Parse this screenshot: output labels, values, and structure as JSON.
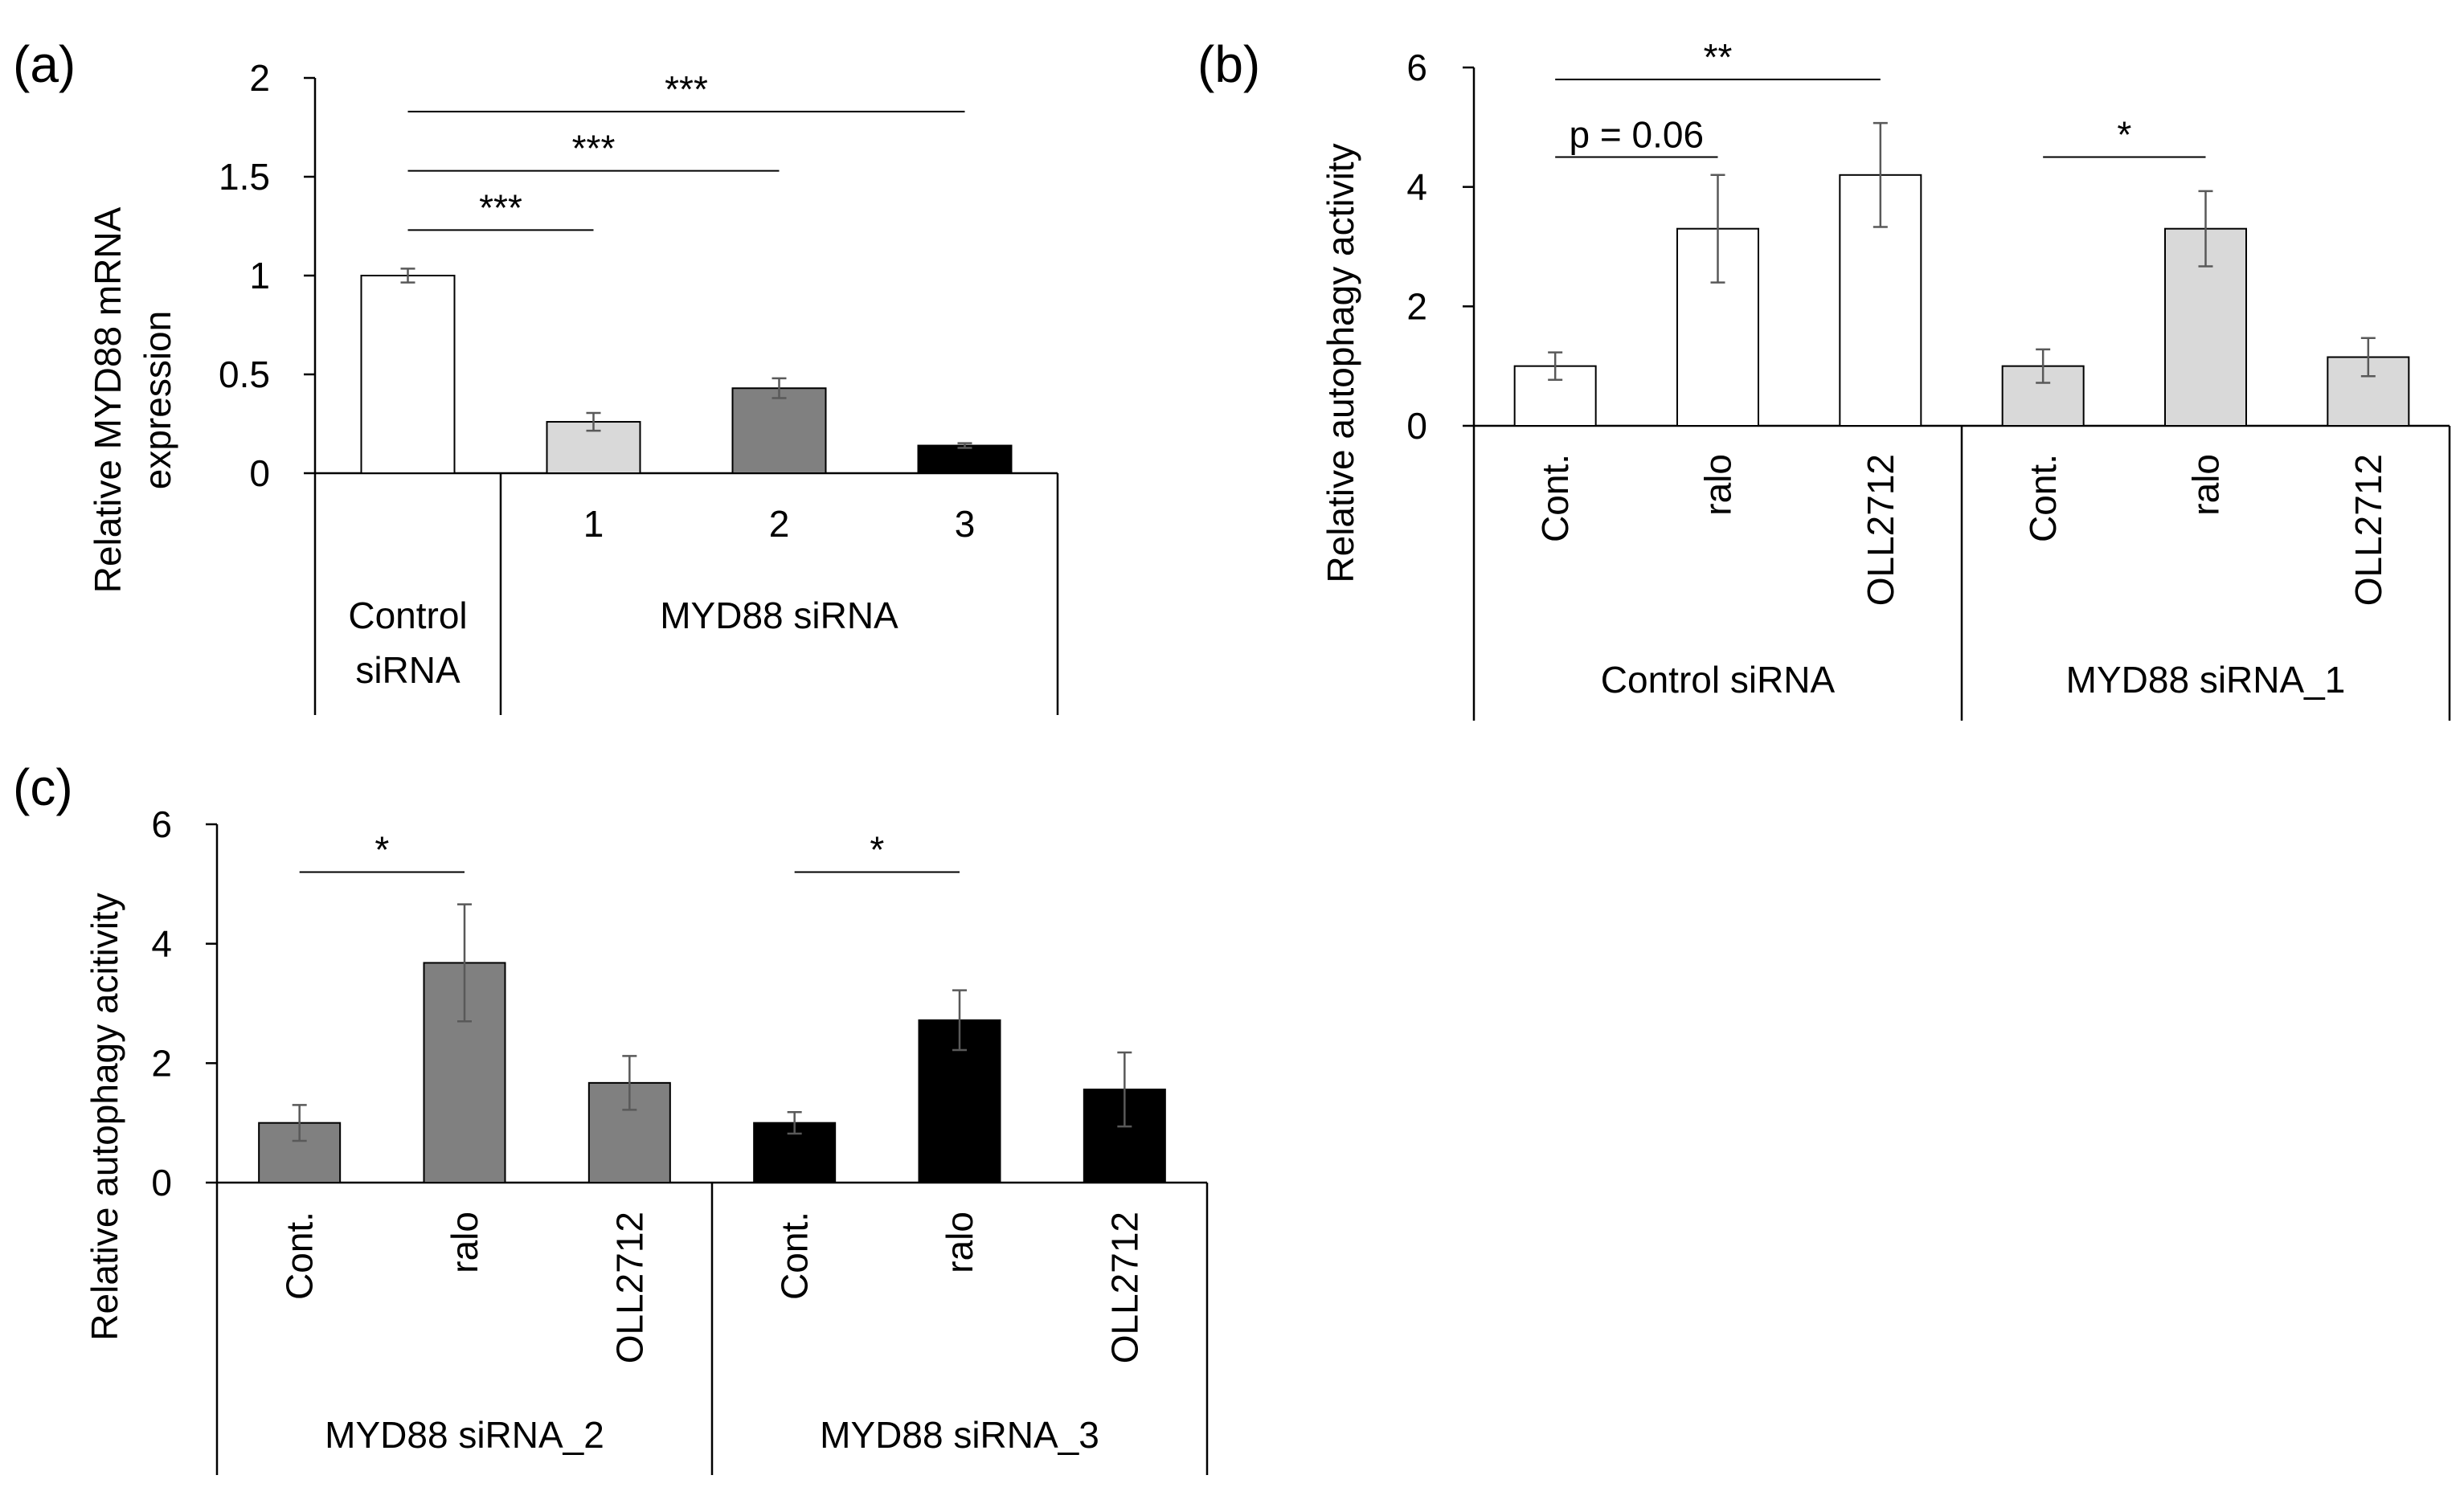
{
  "chart_data": [
    {
      "panel": "(a)",
      "type": "bar",
      "ylabel": "Relative MYD88 mRNA expression",
      "ylabel_lines": [
        "Relative MYD88 mRNA",
        "expression"
      ],
      "ylim": [
        0,
        2
      ],
      "yticks": [
        "0",
        "0.5",
        "1",
        "1.5",
        "2"
      ],
      "categories": [
        "",
        "1",
        "2",
        "3"
      ],
      "groups": [
        {
          "label_lines": [
            "Control",
            "siRNA"
          ],
          "bars": [
            0
          ]
        },
        {
          "label_lines": [
            "MYD88 siRNA"
          ],
          "bars": [
            1,
            2,
            3
          ]
        }
      ],
      "values": [
        1.0,
        0.26,
        0.43,
        0.14
      ],
      "errors": [
        0.035,
        0.045,
        0.05,
        0.012
      ],
      "fills": [
        "#ffffff",
        "#d9d9d9",
        "#808080",
        "#000000"
      ],
      "significance": [
        {
          "from": 0,
          "to": 1,
          "label": "***",
          "y": 1.23
        },
        {
          "from": 0,
          "to": 2,
          "label": "***",
          "y": 1.53
        },
        {
          "from": 0,
          "to": 3,
          "label": "***",
          "y": 1.83
        }
      ]
    },
    {
      "panel": "(b)",
      "type": "bar",
      "ylabel": "Relative autophagy activity",
      "ylim": [
        0,
        6
      ],
      "yticks": [
        "0",
        "2",
        "4",
        "6"
      ],
      "categories": [
        "Cont.",
        "ralo",
        "OLL2712",
        "Cont.",
        "ralo",
        "OLL2712"
      ],
      "groups": [
        {
          "label_lines": [
            "Control siRNA"
          ],
          "bars": [
            0,
            1,
            2
          ]
        },
        {
          "label_lines": [
            "MYD88 siRNA_1"
          ],
          "bars": [
            3,
            4,
            5
          ]
        }
      ],
      "values": [
        1.0,
        3.3,
        4.2,
        1.0,
        3.3,
        1.15
      ],
      "errors": [
        0.23,
        0.9,
        0.87,
        0.28,
        0.63,
        0.32
      ],
      "fills": [
        "#ffffff",
        "#ffffff",
        "#ffffff",
        "#d9d9d9",
        "#d9d9d9",
        "#d9d9d9"
      ],
      "significance": [
        {
          "from": 0,
          "to": 1,
          "label": "p = 0.06",
          "y": 4.5
        },
        {
          "from": 0,
          "to": 2,
          "label": "**",
          "y": 5.8
        },
        {
          "from": 3,
          "to": 4,
          "label": "*",
          "y": 4.5
        }
      ]
    },
    {
      "panel": "(c)",
      "type": "bar",
      "ylabel": "Relative autophagy acitivity",
      "ylim": [
        0,
        6
      ],
      "yticks": [
        "0",
        "2",
        "4",
        "6"
      ],
      "categories": [
        "Cont.",
        "ralo",
        "OLL2712",
        "Cont.",
        "ralo",
        "OLL2712"
      ],
      "groups": [
        {
          "label_lines": [
            "MYD88 siRNA_2"
          ],
          "bars": [
            0,
            1,
            2
          ]
        },
        {
          "label_lines": [
            "MYD88 siRNA_3"
          ],
          "bars": [
            3,
            4,
            5
          ]
        }
      ],
      "values": [
        1.0,
        3.68,
        1.67,
        1.0,
        2.72,
        1.56
      ],
      "errors": [
        0.3,
        0.98,
        0.45,
        0.18,
        0.5,
        0.62
      ],
      "fills": [
        "#808080",
        "#808080",
        "#808080",
        "#000000",
        "#000000",
        "#000000"
      ],
      "significance": [
        {
          "from": 0,
          "to": 1,
          "label": "*",
          "y": 5.2
        },
        {
          "from": 3,
          "to": 4,
          "label": "*",
          "y": 5.2
        }
      ]
    }
  ]
}
